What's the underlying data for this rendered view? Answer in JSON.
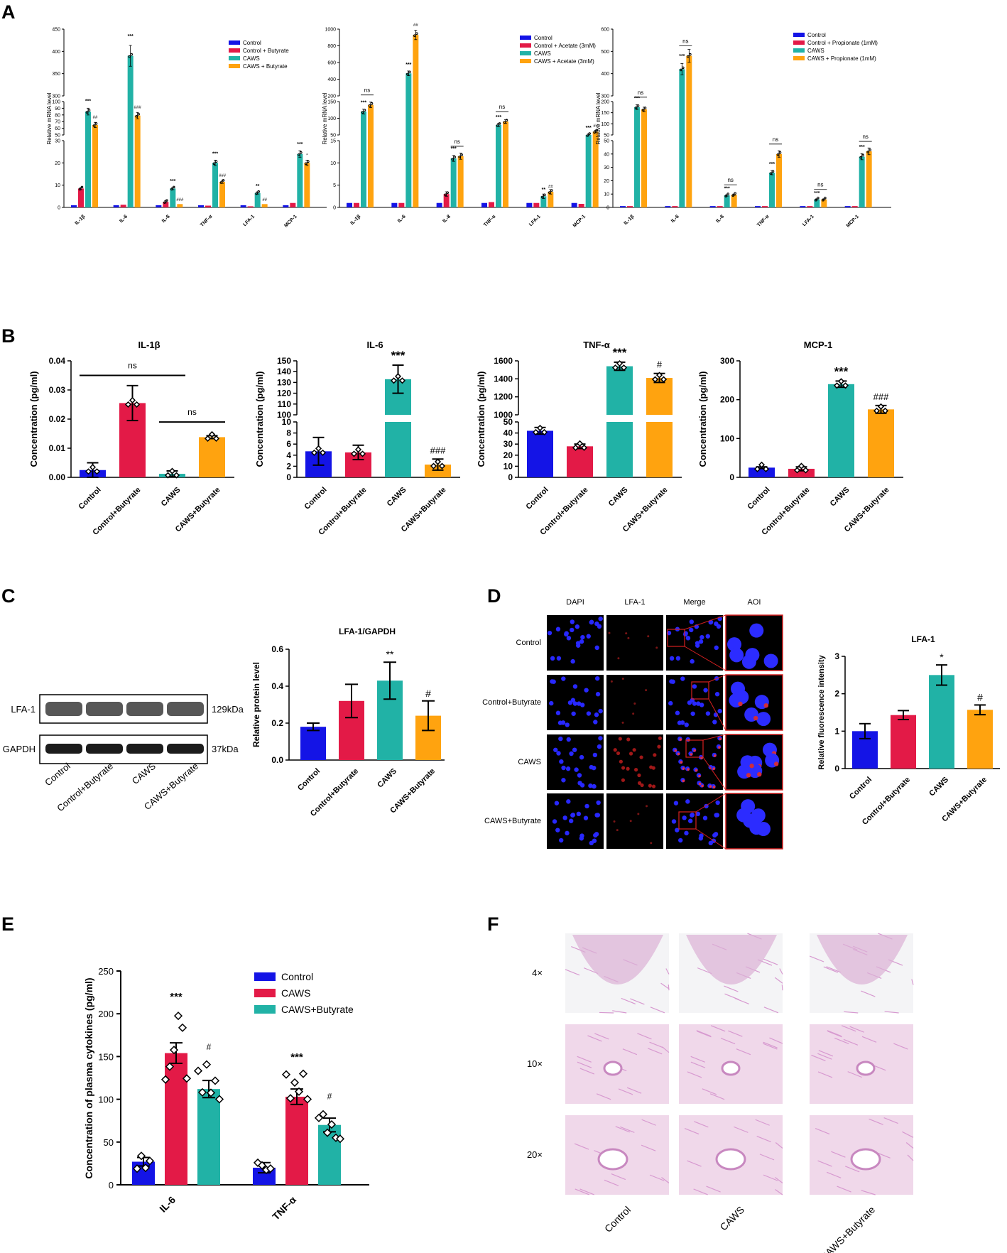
{
  "panels": {
    "A": "A",
    "B": "B",
    "C": "C",
    "D": "D",
    "E": "E",
    "F": "F"
  },
  "colors": {
    "control": "#1414e6",
    "control_treat": "#e31a47",
    "caws": "#21b2a6",
    "caws_treat": "#ffa30f"
  },
  "a_panels": [
    {
      "legend": [
        "Control",
        "Control + Butyrate",
        "CAWS",
        "CAWS + Butyrate"
      ],
      "ylabel": "Relative mRNA level",
      "ticks_low": [
        "0",
        "10",
        "20",
        "30"
      ],
      "ticks_mid": [
        "50",
        "60",
        "70",
        "80",
        "90",
        "100"
      ],
      "ticks_high": [
        "300",
        "350",
        "400",
        "450"
      ],
      "categories": [
        "IL-1β",
        "IL-6",
        "IL-8",
        "TNF-α",
        "LFA-1",
        "MCP-1"
      ],
      "values": [
        [
          1,
          8.5,
          85,
          65
        ],
        [
          1,
          1.2,
          390,
          79
        ],
        [
          1,
          2.5,
          8.5,
          1.5
        ],
        [
          1,
          0.8,
          20,
          11.5
        ],
        [
          1,
          0.5,
          6.5,
          1.5
        ],
        [
          1,
          2,
          24,
          20
        ]
      ],
      "sig_caws": [
        "***",
        "***",
        "***",
        "***",
        "**",
        "***"
      ],
      "sig_treat": [
        "##",
        "###",
        "###",
        "###",
        "##",
        "*"
      ]
    },
    {
      "legend": [
        "Control",
        "Control + Acetate (3mM)",
        "CAWS",
        "CAWS + Acetate (3mM)"
      ],
      "ylabel": "Relative mRNA level",
      "ticks_low": [
        "0",
        "5",
        "10",
        "15"
      ],
      "ticks_mid": [
        "50",
        "100",
        "150"
      ],
      "ticks_high": [
        "200",
        "400",
        "600",
        "800",
        "1000"
      ],
      "categories": [
        "IL-1β",
        "IL-6",
        "IL-8",
        "TNF-α",
        "LFA-1",
        "MCP-1"
      ],
      "values": [
        [
          1,
          1,
          120,
          140
        ],
        [
          1,
          1,
          470,
          930
        ],
        [
          1,
          3,
          11,
          11.5
        ],
        [
          1,
          1.2,
          80,
          90
        ],
        [
          1,
          1,
          2.5,
          3.5
        ],
        [
          1,
          0.8,
          50,
          60
        ]
      ],
      "sig_caws": [
        "***",
        "***",
        "***",
        "***",
        "**",
        "***"
      ],
      "sig_treat": [
        "ns",
        "##",
        "ns",
        "ns",
        "##",
        "##"
      ]
    },
    {
      "legend": [
        "Control",
        "Control + Propionate (1mM)",
        "CAWS",
        "CAWS + Propionate (1mM)"
      ],
      "ylabel": "Relative mRNA level",
      "ticks_low": [
        "0",
        "10",
        "20",
        "30",
        "40",
        "50"
      ],
      "ticks_mid": [
        "50",
        "100",
        "150",
        "200"
      ],
      "ticks_high": [
        "300",
        "400",
        "500",
        "600"
      ],
      "categories": [
        "IL-1β",
        "IL-6",
        "IL-8",
        "TNF-α",
        "LFA-1",
        "MCP-1"
      ],
      "values": [
        [
          1,
          1,
          175,
          165
        ],
        [
          1,
          1,
          420,
          480
        ],
        [
          1,
          1,
          9,
          9.5
        ],
        [
          1,
          1,
          26,
          40
        ],
        [
          1,
          1,
          6,
          6
        ],
        [
          1,
          1,
          38,
          42
        ]
      ],
      "sig_caws": [
        "***",
        "***",
        "***",
        "***",
        "***",
        "***"
      ],
      "sig_treat": [
        "ns",
        "ns",
        "ns",
        "ns",
        "ns",
        "ns"
      ]
    }
  ],
  "b_categories": [
    "Control",
    "Control+Butyrate",
    "CAWS",
    "CAWS+Butyrate"
  ],
  "b_ylabel": "Concentration (pg/ml)",
  "b_panels": [
    {
      "title": "IL-1β",
      "values": [
        0.0025,
        0.0255,
        0.0012,
        0.0138
      ],
      "errors": [
        0.0025,
        0.006,
        0.001,
        0.0005
      ],
      "ticks": [
        "0.00",
        "0.01",
        "0.02",
        "0.03",
        "0.04"
      ],
      "ns": [
        "ns",
        "ns"
      ]
    },
    {
      "title": "IL-6",
      "values": [
        4.7,
        4.5,
        133,
        2.3
      ],
      "errors": [
        2.5,
        1.3,
        13,
        1
      ],
      "ticks_low": [
        "0",
        "2",
        "4",
        "6",
        "8",
        "10"
      ],
      "ticks_high": [
        "100",
        "110",
        "120",
        "130",
        "140",
        "150"
      ],
      "sig": [
        "",
        "",
        "***",
        "###"
      ]
    },
    {
      "title": "TNF-α",
      "values": [
        42,
        28,
        1540,
        1410
      ],
      "errors": [
        3,
        2,
        45,
        50
      ],
      "ticks_low": [
        "0",
        "10",
        "20",
        "30",
        "40",
        "50"
      ],
      "ticks_high": [
        "1000",
        "1200",
        "1400",
        "1600"
      ],
      "sig": [
        "",
        "",
        "***",
        "#"
      ]
    },
    {
      "title": "MCP-1",
      "values": [
        25,
        22,
        240,
        175
      ],
      "errors": [
        2,
        5,
        8,
        10
      ],
      "ticks": [
        "0",
        "100",
        "200",
        "300"
      ],
      "sig": [
        "",
        "",
        "***",
        "###"
      ]
    }
  ],
  "c": {
    "title": "LFA-1/GAPDH",
    "ylabel": "Relative protein level",
    "band1": "LFA-1",
    "band1_kda": "129kDa",
    "band2": "GAPDH",
    "band2_kda": "37kDa",
    "lanes": [
      "Control",
      "Control+Butyrate",
      "CAWS",
      "CAWS+Butyrate"
    ],
    "ticks": [
      "0.0",
      "0.2",
      "0.4",
      "0.6"
    ],
    "values": [
      0.18,
      0.32,
      0.43,
      0.24
    ],
    "errors": [
      0.02,
      0.09,
      0.1,
      0.08
    ],
    "sig": [
      "",
      "",
      "**",
      "#"
    ]
  },
  "d": {
    "col_headers": [
      "DAPI",
      "LFA-1",
      "Merge",
      "AOI"
    ],
    "rows": [
      "Control",
      "Control+Butyrate",
      "CAWS",
      "CAWS+Butyrate"
    ],
    "title": "LFA-1",
    "ylabel": "Relative fluorescence intensity",
    "ticks": [
      "0",
      "1",
      "2",
      "3"
    ],
    "values": [
      1.0,
      1.43,
      2.5,
      1.57
    ],
    "errors": [
      0.2,
      0.12,
      0.27,
      0.13
    ],
    "sig": [
      "",
      "",
      "*",
      "#"
    ]
  },
  "e": {
    "legend": [
      "Control",
      "CAWS",
      "CAWS+Butyrate"
    ],
    "ylabel": "Concentration of plasma cytokines (pg/ml)",
    "groups": [
      "IL-6",
      "TNF-α"
    ],
    "ticks": [
      "0",
      "50",
      "100",
      "150",
      "200",
      "250"
    ],
    "values": [
      [
        27,
        154,
        112
      ],
      [
        20,
        103,
        70
      ]
    ],
    "errors": [
      [
        5,
        12,
        10
      ],
      [
        6,
        9,
        8
      ]
    ],
    "sig": [
      [
        "",
        "***",
        "#"
      ],
      [
        "",
        "***",
        "#"
      ]
    ]
  },
  "f": {
    "rows": [
      "4×",
      "10×",
      "20×"
    ],
    "cols": [
      "Control",
      "CAWS",
      "CAWS+Butyrate"
    ]
  }
}
